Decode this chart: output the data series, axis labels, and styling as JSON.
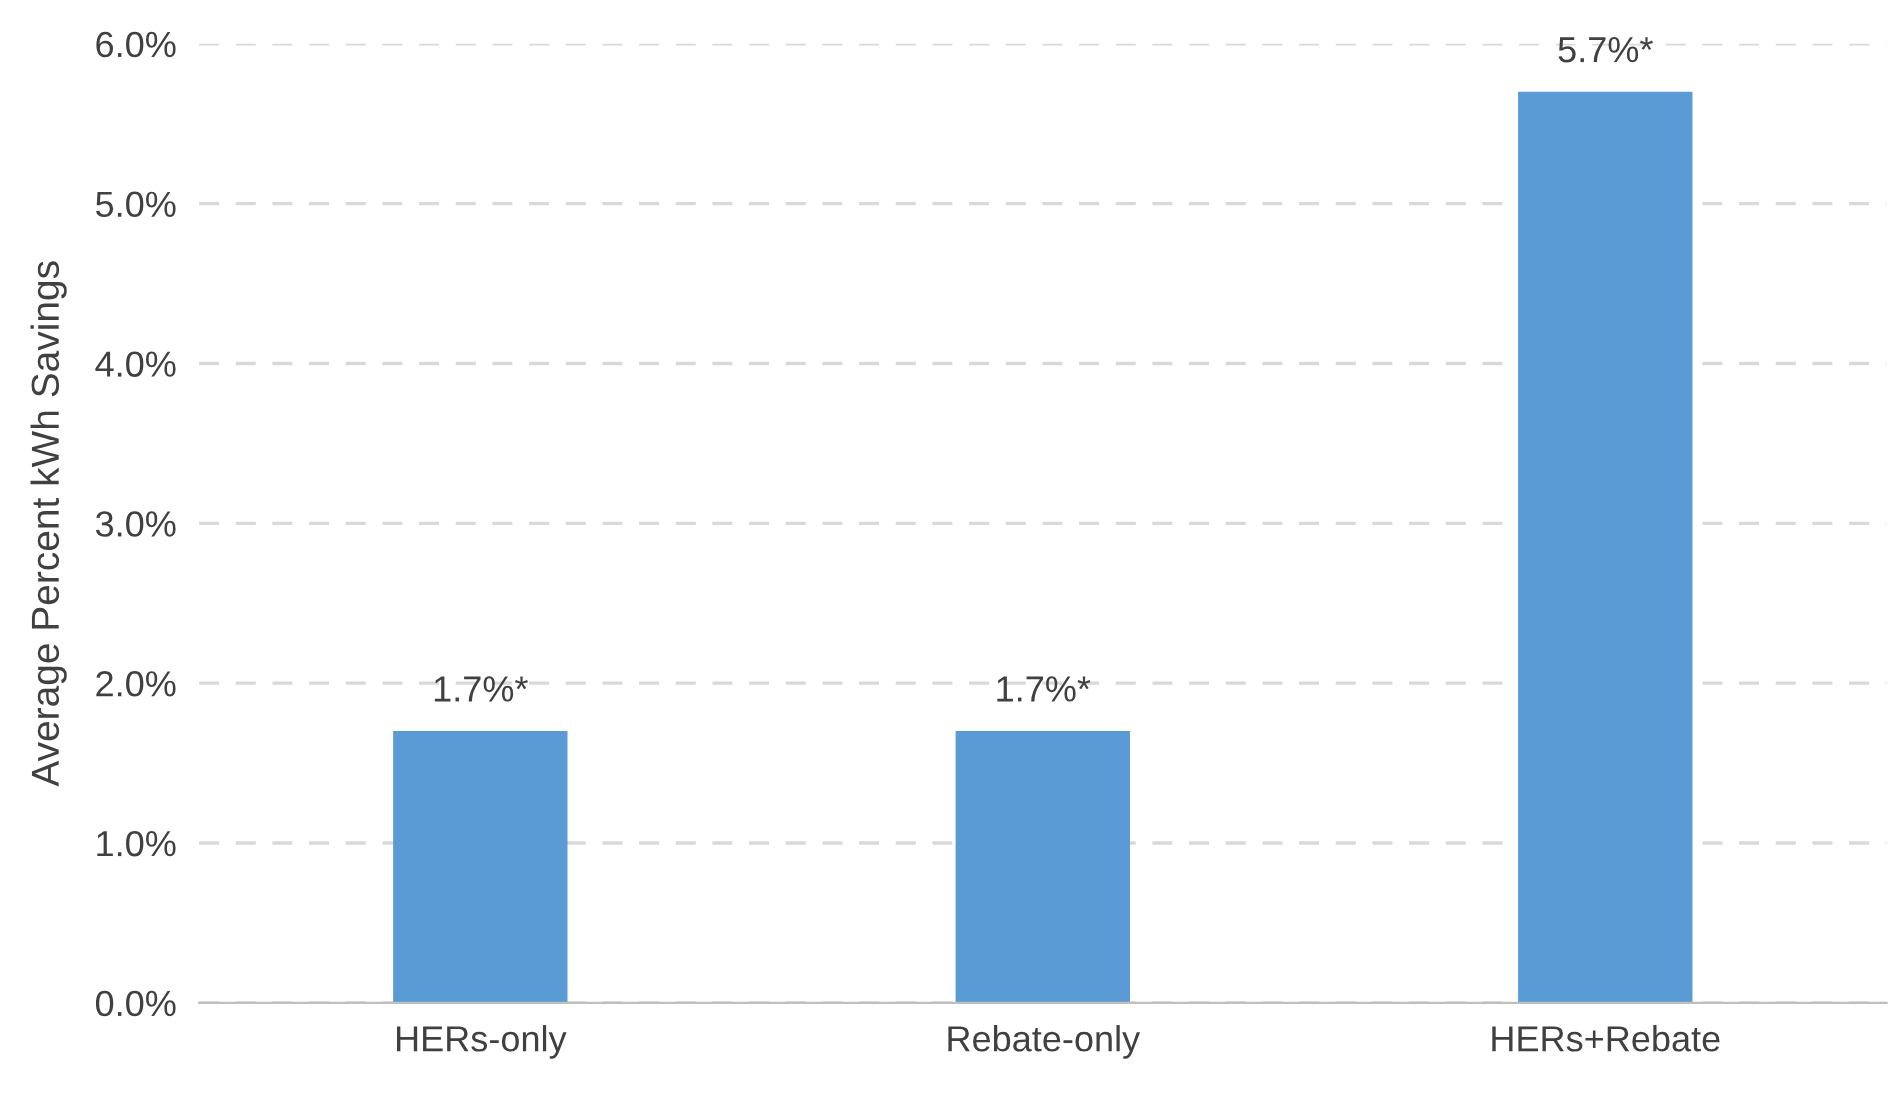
{
  "chart_data": {
    "type": "bar",
    "ylabel": "Average Percent kWh Savings",
    "categories": [
      "HERs-only",
      "Rebate-only",
      "HERs+Rebate"
    ],
    "values": [
      1.7,
      1.7,
      5.7
    ],
    "value_labels": [
      "1.7%*",
      "1.7%*",
      "5.7%*"
    ],
    "color": "#5b9bd5",
    "ylim": [
      0,
      6
    ],
    "yticks": [
      {
        "value": 0,
        "label": "0.0%"
      },
      {
        "value": 1,
        "label": "1.0%"
      },
      {
        "value": 2,
        "label": "2.0%"
      },
      {
        "value": 3,
        "label": "3.0%"
      },
      {
        "value": 4,
        "label": "4.0%"
      },
      {
        "value": 5,
        "label": "5.0%"
      },
      {
        "value": 6,
        "label": "6.0%"
      }
    ],
    "grid": "y",
    "legend": false
  }
}
